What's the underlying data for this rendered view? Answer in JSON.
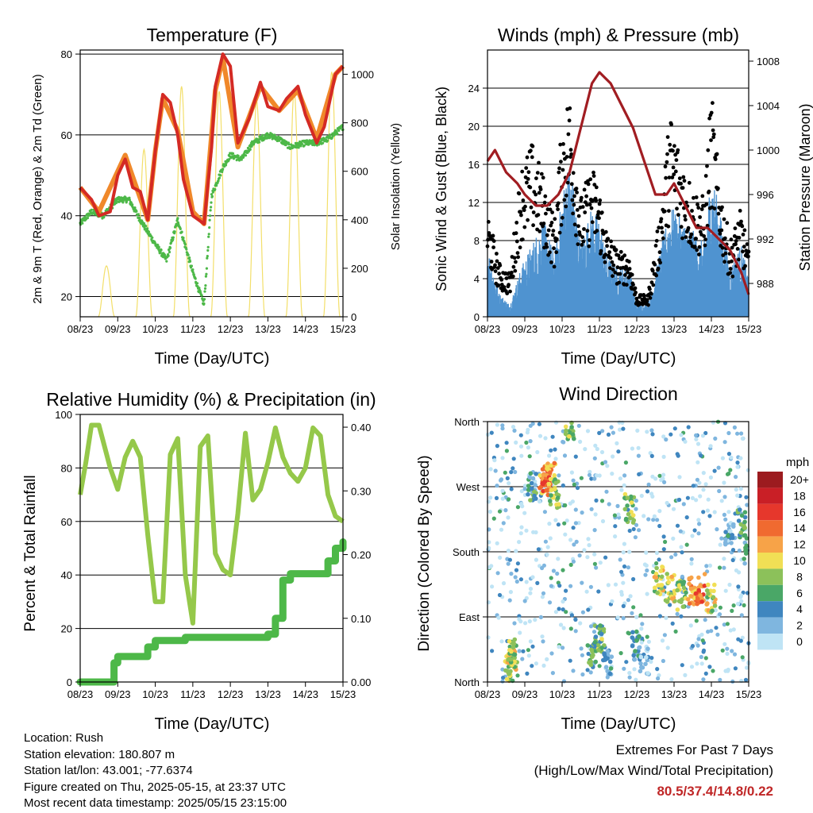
{
  "panels": {
    "temperature": {
      "title": "Temperature (F)",
      "ylabel_left": "2m & 9m T (Red, Orange) & 2m Td (Green)",
      "ylabel_right": "Solar Insolation (Yellow)",
      "xlabel": "Time (Day/UTC)"
    },
    "winds": {
      "title": "Winds (mph) & Pressure (mb)",
      "ylabel_left": "Sonic Wind & Gust (Blue, Black)",
      "ylabel_right": "Station Pressure (Maroon)",
      "xlabel": "Time (Day/UTC)"
    },
    "humidity": {
      "title": "Relative Humidity (%) & Precipitation (in)",
      "ylabel_left": "Percent & Total Rainfall",
      "xlabel": "Time (Day/UTC)"
    },
    "direction": {
      "title": "Wind Direction",
      "ylabel_left": "Direction (Colored By Speed)",
      "xlabel": "Time (Day/UTC)",
      "legend_title": "mph"
    }
  },
  "station": {
    "location": "Location: Rush",
    "elevation": "Station elevation: 180.807 m",
    "latlon": "Station lat/lon: 43.001; -77.6374",
    "created": "Figure created on Thu, 2025-05-15, at 23:37 UTC",
    "recent": "Most recent data timestamp: 2025/05/15 23:15:00"
  },
  "extremes": {
    "line1": "Extremes For Past 7 Days",
    "line2": "(High/Low/Max Wind/Total Precipitation)",
    "values": "80.5/37.4/14.8/0.22"
  },
  "colors": {
    "temp2m": "#d42a24",
    "temp9m": "#f0882a",
    "dewpoint": "#4db848",
    "solar": "#f3df6a",
    "wind": "#4f93d0",
    "gust": "#000000",
    "pressure": "#a11d22",
    "rh": "#95c84a",
    "precip": "#4db848"
  },
  "chart_data": [
    {
      "type": "line",
      "title": "Temperature (F)",
      "xlabel": "Time (Day/UTC)",
      "ylabel": "2m & 9m T (Red, Orange) & 2m Td (Green)",
      "y2label": "Solar Insolation (Yellow)",
      "x_ticks": [
        "08/23",
        "09/23",
        "10/23",
        "11/23",
        "12/23",
        "13/23",
        "14/23",
        "15/23"
      ],
      "ylim": [
        15,
        81
      ],
      "y_ticks": [
        20,
        40,
        60,
        80
      ],
      "y2lim": [
        0,
        1100
      ],
      "y2_ticks": [
        0,
        200,
        400,
        600,
        800,
        1000
      ],
      "grid_y": [
        20,
        40,
        60,
        80
      ],
      "series": [
        {
          "name": "2m T",
          "color": "#d42a24",
          "x": [
            0,
            0.3,
            0.5,
            0.8,
            1.0,
            1.2,
            1.4,
            1.6,
            1.8,
            2.0,
            2.2,
            2.4,
            2.6,
            2.75,
            3.0,
            3.3,
            3.5,
            3.6,
            3.8,
            4.0,
            4.2,
            4.5,
            4.8,
            5.0,
            5.3,
            5.5,
            5.8,
            6.0,
            6.3,
            6.5,
            6.8,
            7.0
          ],
          "y": [
            47,
            44,
            40,
            41,
            50,
            54,
            47,
            46,
            39,
            56,
            70,
            68,
            60,
            49,
            40,
            38,
            57,
            72,
            80,
            77,
            58,
            64,
            73,
            67,
            66,
            69,
            72,
            65,
            58,
            62,
            75,
            77
          ]
        },
        {
          "name": "9m T",
          "color": "#f0882a",
          "x": [
            0,
            0.5,
            1.0,
            1.2,
            1.8,
            2.0,
            2.2,
            2.6,
            3.0,
            3.3,
            3.6,
            3.8,
            4.2,
            4.8,
            5.3,
            5.8,
            6.3,
            6.8,
            7.0
          ],
          "y": [
            47,
            41,
            51,
            55,
            39,
            56,
            69,
            61,
            41,
            38,
            71,
            79,
            57,
            72,
            66,
            71,
            59,
            75,
            77
          ]
        },
        {
          "name": "2m Td",
          "color": "#4db848",
          "x": [
            0,
            0.3,
            0.6,
            1.0,
            1.3,
            1.6,
            2.0,
            2.3,
            2.6,
            3.0,
            3.3,
            3.5,
            3.8,
            4.0,
            4.3,
            4.6,
            5.0,
            5.3,
            5.6,
            6.0,
            6.3,
            6.6,
            7.0
          ],
          "y": [
            38,
            41,
            40,
            44,
            44,
            39,
            33,
            29,
            39,
            26,
            18,
            45,
            52,
            55,
            54,
            58,
            60,
            59,
            57,
            58,
            58,
            59,
            62
          ]
        },
        {
          "name": "Solar Insolation",
          "color": "#f3df6a",
          "axis": "y2",
          "day_peaks": [
            {
              "x": 0.7,
              "y": 210
            },
            {
              "x": 1.7,
              "y": 690
            },
            {
              "x": 2.7,
              "y": 950
            },
            {
              "x": 3.7,
              "y": 930
            },
            {
              "x": 4.7,
              "y": 890
            },
            {
              "x": 5.7,
              "y": 930
            },
            {
              "x": 6.7,
              "y": 1010
            }
          ]
        }
      ]
    },
    {
      "type": "line",
      "title": "Winds (mph) & Pressure (mb)",
      "xlabel": "Time (Day/UTC)",
      "ylabel": "Sonic Wind & Gust (Blue, Black)",
      "y2label": "Station Pressure (Maroon)",
      "x_ticks": [
        "08/23",
        "09/23",
        "10/23",
        "11/23",
        "12/23",
        "13/23",
        "14/23",
        "15/23"
      ],
      "ylim": [
        0,
        28
      ],
      "y_ticks": [
        0,
        4,
        8,
        12,
        16,
        20,
        24
      ],
      "y2lim": [
        985,
        1009
      ],
      "y2_ticks": [
        988,
        992,
        996,
        1000,
        1004,
        1008
      ],
      "grid_y": [
        4,
        8,
        12,
        16,
        20,
        24
      ],
      "series": [
        {
          "name": "Sonic Wind",
          "color": "#4f93d0",
          "x": [
            0,
            0.3,
            0.6,
            0.9,
            1.2,
            1.5,
            1.8,
            2.0,
            2.2,
            2.5,
            2.8,
            3.0,
            3.2,
            3.5,
            3.8,
            4.0,
            4.3,
            4.6,
            4.9,
            5.2,
            5.5,
            5.8,
            6.0,
            6.2,
            6.5,
            6.8,
            7.0
          ],
          "y": [
            6,
            2,
            1,
            4,
            6,
            8,
            5,
            10,
            13,
            6,
            9,
            8,
            5,
            4,
            4,
            1,
            1,
            5,
            9,
            8,
            7,
            6,
            12,
            9,
            4,
            6,
            3
          ]
        },
        {
          "name": "Gust",
          "color": "#000000",
          "x": [
            0,
            0.3,
            0.6,
            0.9,
            1.2,
            1.5,
            1.8,
            2.0,
            2.2,
            2.5,
            2.8,
            3.0,
            3.2,
            3.5,
            3.8,
            4.0,
            4.3,
            4.6,
            4.9,
            5.2,
            5.5,
            5.8,
            6.0,
            6.2,
            6.5,
            6.8,
            7.0
          ],
          "y": [
            10,
            5,
            4,
            14,
            16,
            13,
            9,
            18,
            21,
            11,
            14,
            12,
            8,
            6,
            6,
            2,
            2,
            9,
            19,
            15,
            12,
            11,
            21,
            13,
            7,
            10,
            6
          ]
        },
        {
          "name": "Station Pressure",
          "color": "#a11d22",
          "axis": "y2",
          "x": [
            0,
            0.2,
            0.5,
            0.8,
            1.0,
            1.3,
            1.6,
            1.9,
            2.2,
            2.5,
            2.8,
            3.0,
            3.3,
            3.6,
            3.9,
            4.2,
            4.5,
            4.8,
            5.0,
            5.3,
            5.6,
            5.9,
            6.2,
            6.5,
            6.8,
            7.0
          ],
          "y": [
            999,
            1000,
            998,
            997,
            996,
            995,
            995,
            996,
            998,
            1002,
            1006,
            1007,
            1006,
            1004,
            1002,
            999,
            996,
            996,
            997,
            995,
            993,
            993,
            992,
            991,
            989,
            987
          ]
        }
      ]
    },
    {
      "type": "line",
      "title": "Relative Humidity (%) & Precipitation (in)",
      "xlabel": "Time (Day/UTC)",
      "ylabel": "Percent & Total Rainfall",
      "x_ticks": [
        "08/23",
        "09/23",
        "10/23",
        "11/23",
        "12/23",
        "13/23",
        "14/23",
        "15/23"
      ],
      "ylim": [
        0,
        100
      ],
      "y_ticks": [
        0,
        20,
        40,
        60,
        80,
        100
      ],
      "y2lim": [
        0,
        0.42
      ],
      "y2_ticks": [
        "0.00",
        "0.10",
        "0.20",
        "0.30",
        "0.40"
      ],
      "grid_y": [
        20,
        40,
        60,
        80
      ],
      "series": [
        {
          "name": "Relative Humidity",
          "color": "#95c84a",
          "x": [
            0,
            0.15,
            0.3,
            0.5,
            0.8,
            1.0,
            1.2,
            1.4,
            1.6,
            1.8,
            2.0,
            2.2,
            2.4,
            2.6,
            2.8,
            3.0,
            3.2,
            3.4,
            3.6,
            3.8,
            4.0,
            4.2,
            4.4,
            4.6,
            4.8,
            5.0,
            5.2,
            5.4,
            5.6,
            5.8,
            6.0,
            6.2,
            6.4,
            6.6,
            6.8,
            7.0
          ],
          "y": [
            70,
            82,
            96,
            96,
            80,
            72,
            84,
            90,
            84,
            55,
            30,
            30,
            85,
            91,
            40,
            22,
            88,
            92,
            48,
            42,
            40,
            63,
            93,
            68,
            72,
            82,
            95,
            84,
            78,
            75,
            80,
            95,
            92,
            70,
            62,
            60
          ]
        },
        {
          "name": "Total Precipitation",
          "color": "#4db848",
          "axis": "y2",
          "x": [
            0,
            0.4,
            0.8,
            0.9,
            1.0,
            1.3,
            1.6,
            1.8,
            2.0,
            2.5,
            2.8,
            3.0,
            3.5,
            4.0,
            4.5,
            5.0,
            5.2,
            5.4,
            5.6,
            5.8,
            6.0,
            6.4,
            6.6,
            6.8,
            7.0
          ],
          "y": [
            0,
            0,
            0,
            0.03,
            0.04,
            0.04,
            0.04,
            0.055,
            0.065,
            0.065,
            0.07,
            0.07,
            0.07,
            0.07,
            0.07,
            0.075,
            0.1,
            0.16,
            0.17,
            0.17,
            0.17,
            0.17,
            0.19,
            0.21,
            0.22
          ]
        }
      ]
    },
    {
      "type": "scatter",
      "title": "Wind Direction",
      "xlabel": "Time (Day/UTC)",
      "ylabel": "Direction (Colored By Speed)",
      "x_ticks": [
        "08/23",
        "09/23",
        "10/23",
        "11/23",
        "12/23",
        "13/23",
        "14/23",
        "15/23"
      ],
      "y_ticks": [
        "North",
        "East",
        "South",
        "West",
        "North"
      ],
      "legend": {
        "title": "mph",
        "labels": [
          "20+",
          "18",
          "16",
          "14",
          "12",
          "10",
          "8",
          "6",
          "4",
          "2",
          "0"
        ],
        "colors": [
          "#9c1b1f",
          "#c91f26",
          "#e6372c",
          "#f06a30",
          "#f7a348",
          "#f1df55",
          "#8cc15a",
          "#4aa767",
          "#3f86bf",
          "#7fb6df",
          "#bfe4f5"
        ]
      },
      "points": [
        {
          "x": 0.6,
          "dir": 20,
          "mph": 9
        },
        {
          "x": 0.65,
          "dir": 30,
          "mph": 10
        },
        {
          "x": 0.7,
          "dir": 40,
          "mph": 8
        },
        {
          "x": 1.2,
          "dir": 270,
          "mph": 5
        },
        {
          "x": 1.5,
          "dir": 280,
          "mph": 13
        },
        {
          "x": 1.6,
          "dir": 275,
          "mph": 14
        },
        {
          "x": 1.7,
          "dir": 285,
          "mph": 12
        },
        {
          "x": 1.8,
          "dir": 260,
          "mph": 8
        },
        {
          "x": 2.2,
          "dir": 355,
          "mph": 7
        },
        {
          "x": 2.8,
          "dir": 40,
          "mph": 6
        },
        {
          "x": 3.0,
          "dir": 60,
          "mph": 7
        },
        {
          "x": 3.2,
          "dir": 30,
          "mph": 3
        },
        {
          "x": 3.8,
          "dir": 240,
          "mph": 8
        },
        {
          "x": 4.0,
          "dir": 50,
          "mph": 4
        },
        {
          "x": 4.2,
          "dir": 30,
          "mph": 2
        },
        {
          "x": 4.6,
          "dir": 140,
          "mph": 9
        },
        {
          "x": 4.9,
          "dir": 130,
          "mph": 10
        },
        {
          "x": 5.2,
          "dir": 120,
          "mph": 8
        },
        {
          "x": 5.5,
          "dir": 125,
          "mph": 12
        },
        {
          "x": 5.7,
          "dir": 130,
          "mph": 14
        },
        {
          "x": 6.0,
          "dir": 115,
          "mph": 9
        },
        {
          "x": 6.5,
          "dir": 200,
          "mph": 3
        },
        {
          "x": 6.8,
          "dir": 220,
          "mph": 6
        },
        {
          "x": 7.0,
          "dir": 180,
          "mph": 4
        }
      ]
    }
  ]
}
